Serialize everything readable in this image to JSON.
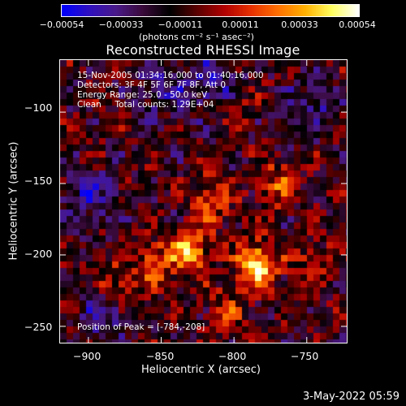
{
  "colorbar": {
    "tick_labels": [
      "−0.00054",
      "−0.00033",
      "−0.00011",
      "0.00011",
      "0.00033",
      "0.00054"
    ],
    "units_label": "(photons cm⁻² s⁻¹ asec⁻²)"
  },
  "chart_data": {
    "type": "heatmap",
    "title": "Reconstructed RHESSI Image",
    "xlabel": "Heliocentric X (arcsec)",
    "ylabel": "Heliocentric Y (arcsec)",
    "x_ticks": [
      "−900",
      "−850",
      "−800",
      "−750"
    ],
    "y_ticks": [
      "−100",
      "−150",
      "−200",
      "−250"
    ],
    "x_tick_values": [
      -900,
      -850,
      -800,
      -750
    ],
    "y_tick_values": [
      -100,
      -150,
      -200,
      -250
    ],
    "xlim": [
      -920,
      -722
    ],
    "ylim": [
      -262,
      -63
    ],
    "color_range": [
      -0.00054,
      0.00054
    ],
    "peak": [
      -784,
      -208
    ],
    "colormap_stops": [
      "#0000ff",
      "#3010c0",
      "#4a1a8a",
      "#3a0a3a",
      "#000000",
      "#5a0000",
      "#b00000",
      "#e63000",
      "#ff7000",
      "#ffb000",
      "#ffff60",
      "#ffffff"
    ],
    "bright_regions": [
      {
        "x": -784,
        "y": -208,
        "strength": 1.0
      },
      {
        "x": -830,
        "y": -198,
        "strength": 0.75
      },
      {
        "x": -815,
        "y": -160,
        "strength": 0.55
      },
      {
        "x": -770,
        "y": -150,
        "strength": 0.45
      },
      {
        "x": -855,
        "y": -205,
        "strength": 0.45
      },
      {
        "x": -880,
        "y": -220,
        "strength": 0.35
      },
      {
        "x": -805,
        "y": -240,
        "strength": 0.35
      },
      {
        "x": -745,
        "y": -205,
        "strength": 0.3
      },
      {
        "x": -800,
        "y": -95,
        "strength": 0.3
      }
    ],
    "dark_regions": [
      {
        "x": -815,
        "y": -80,
        "strength": 0.9
      },
      {
        "x": -900,
        "y": -160,
        "strength": 0.7
      },
      {
        "x": -890,
        "y": -240,
        "strength": 0.6
      },
      {
        "x": -745,
        "y": -95,
        "strength": 0.6
      },
      {
        "x": -850,
        "y": -85,
        "strength": 0.5
      }
    ]
  },
  "annotation": {
    "line1": "15-Nov-2005 01:34:16.000 to 01:40:16.000",
    "line2": "Detectors: 3F 4F 5F 6F 7F 8F, Att 0",
    "line3": "Energy Range: 25.0 - 50.0 keV",
    "line4": "Clean     Total counts: 1.29E+04",
    "peak_text": "Position of Peak = [-784,-208]"
  },
  "footer": {
    "date": "3-May-2022 05:59"
  }
}
